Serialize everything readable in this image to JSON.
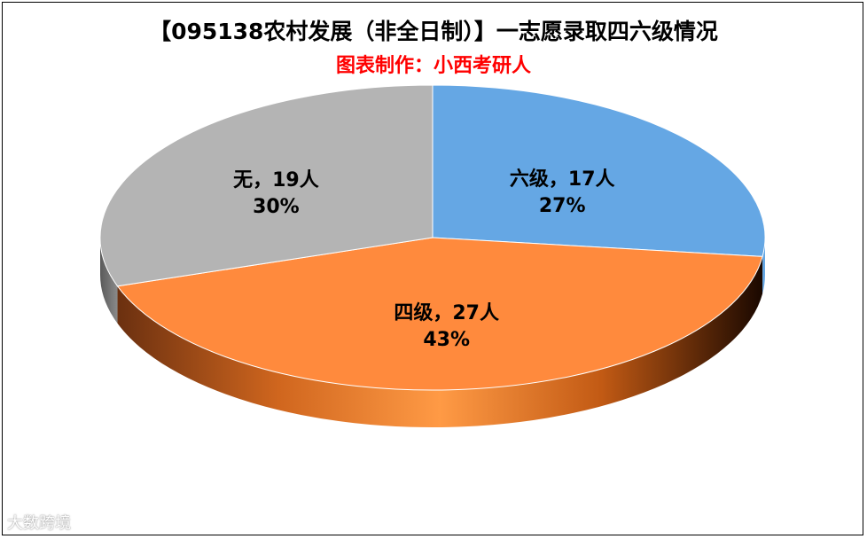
{
  "chart_data": {
    "type": "pie",
    "title": "【095138农村发展（非全日制）】一志愿录取四六级情况",
    "subtitle": "图表制作：小西考研人",
    "slices": [
      {
        "name": "六级",
        "value": 17,
        "percent": "27%",
        "color": "#65a7e4",
        "label_line1": "六级，17人",
        "label_line2": "27%"
      },
      {
        "name": "四级",
        "value": 27,
        "percent": "43%",
        "color": "#ff8a3d",
        "label_line1": "四级，27人",
        "label_line2": "43%"
      },
      {
        "name": "无",
        "value": 19,
        "percent": "30%",
        "color": "#b4b4b4",
        "label_line1": "无，19人",
        "label_line2": "30%"
      }
    ],
    "legend": "none"
  },
  "watermark": "大数跨境"
}
